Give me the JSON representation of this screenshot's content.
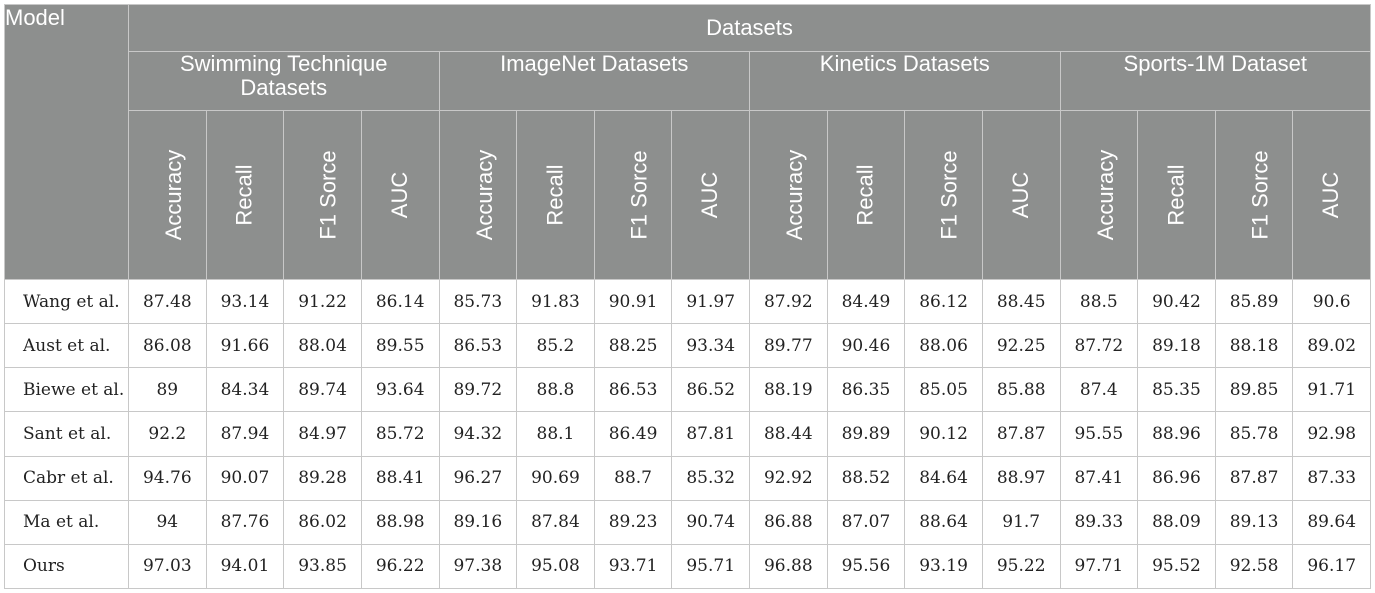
{
  "table": {
    "model_header": "Model",
    "datasets_header": "Datasets",
    "groups": [
      {
        "name": "Swimming Technique Datasets",
        "line1": "Swimming Technique",
        "line2": "Datasets"
      },
      {
        "name": "ImageNet Datasets",
        "line1": "ImageNet Datasets",
        "line2": ""
      },
      {
        "name": "Kinetics Datasets",
        "line1": "Kinetics Datasets",
        "line2": ""
      },
      {
        "name": "Sports-1M Dataset",
        "line1": "Sports-1M Dataset",
        "line2": ""
      }
    ],
    "metrics": [
      "Accuracy",
      "Recall",
      "F1 Sorce",
      "AUC"
    ],
    "rows": [
      {
        "model": "Wang et al.",
        "values": [
          "87.48",
          "93.14",
          "91.22",
          "86.14",
          "85.73",
          "91.83",
          "90.91",
          "91.97",
          "87.92",
          "84.49",
          "86.12",
          "88.45",
          "88.5",
          "90.42",
          "85.89",
          "90.6"
        ]
      },
      {
        "model": "Aust et al.",
        "values": [
          "86.08",
          "91.66",
          "88.04",
          "89.55",
          "86.53",
          "85.2",
          "88.25",
          "93.34",
          "89.77",
          "90.46",
          "88.06",
          "92.25",
          "87.72",
          "89.18",
          "88.18",
          "89.02"
        ]
      },
      {
        "model": "Biewe et al.",
        "values": [
          "89",
          "84.34",
          "89.74",
          "93.64",
          "89.72",
          "88.8",
          "86.53",
          "86.52",
          "88.19",
          "86.35",
          "85.05",
          "85.88",
          "87.4",
          "85.35",
          "89.85",
          "91.71"
        ]
      },
      {
        "model": "Sant et al.",
        "values": [
          "92.2",
          "87.94",
          "84.97",
          "85.72",
          "94.32",
          "88.1",
          "86.49",
          "87.81",
          "88.44",
          "89.89",
          "90.12",
          "87.87",
          "95.55",
          "88.96",
          "85.78",
          "92.98"
        ]
      },
      {
        "model": "Cabr et al.",
        "values": [
          "94.76",
          "90.07",
          "89.28",
          "88.41",
          "96.27",
          "90.69",
          "88.7",
          "85.32",
          "92.92",
          "88.52",
          "84.64",
          "88.97",
          "87.41",
          "86.96",
          "87.87",
          "87.33"
        ]
      },
      {
        "model": "Ma et al.",
        "values": [
          "94",
          "87.76",
          "86.02",
          "88.98",
          "89.16",
          "87.84",
          "89.23",
          "90.74",
          "86.88",
          "87.07",
          "88.64",
          "91.7",
          "89.33",
          "88.09",
          "89.13",
          "89.64"
        ]
      },
      {
        "model": "Ours",
        "values": [
          "97.03",
          "94.01",
          "93.85",
          "96.22",
          "97.38",
          "95.08",
          "93.71",
          "95.71",
          "96.88",
          "95.56",
          "93.19",
          "95.22",
          "97.71",
          "95.52",
          "92.58",
          "96.17"
        ]
      }
    ]
  }
}
